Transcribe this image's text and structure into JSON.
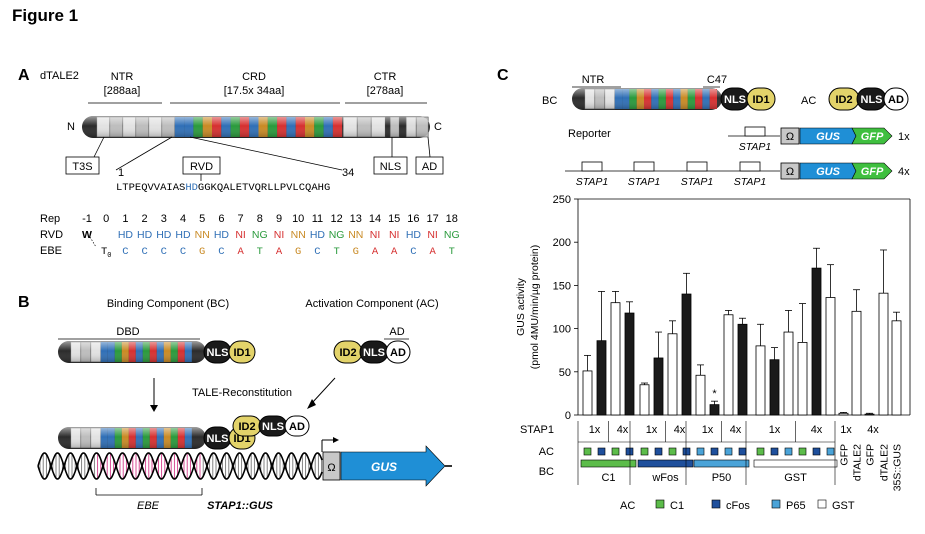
{
  "figure_title": "Figure 1",
  "colors": {
    "HD": "#2f6fb6",
    "NN": "#c98a24",
    "NI": "#d63030",
    "NG": "#2a9a3c",
    "nls_fill": "#1a1a1a",
    "id_fill": "#e3d36a",
    "gus_fill": "#1f8fd6",
    "gfp_fill": "#3fbf3f",
    "ac_c1": "#5cbc4a",
    "ac_cfos": "#1e4f9c",
    "ac_p65": "#4aa3d8",
    "ac_gst": "#ffffff"
  },
  "panel_a": {
    "label": "A",
    "construct": "dTALE2",
    "ntr_label": "NTR",
    "ntr_size": "[288aa]",
    "crd_label": "CRD",
    "crd_size": "[17.5x 34aa]",
    "ctr_label": "CTR",
    "ctr_size": "[278aa]",
    "n_term": "N",
    "c_term": "C",
    "t3s": "T3S",
    "rvd": "RVD",
    "nls": "NLS",
    "ad": "AD",
    "repeat_start": "1",
    "repeat_end": "34",
    "seq_pre": "LTPEQVVAIAS",
    "seq_rvd": "HD",
    "seq_post": "GGKQALETVQRLLPVLCQAHG",
    "rep_label": "Rep",
    "rvd_label": "RVD",
    "ebe_label": "EBE",
    "rep_numbers": [
      "-1",
      "0",
      "1",
      "2",
      "3",
      "4",
      "5",
      "6",
      "7",
      "8",
      "9",
      "10",
      "11",
      "12",
      "13",
      "14",
      "15",
      "16",
      "17",
      "18"
    ],
    "rvds": [
      "W",
      "",
      "HD",
      "HD",
      "HD",
      "HD",
      "NN",
      "HD",
      "NI",
      "NG",
      "NI",
      "NN",
      "HD",
      "NG",
      "NN",
      "NI",
      "NI",
      "HD",
      "NI",
      "NG"
    ],
    "ebe": [
      "",
      "T0",
      "C",
      "C",
      "C",
      "C",
      "G",
      "C",
      "A",
      "T",
      "A",
      "G",
      "C",
      "T",
      "G",
      "A",
      "A",
      "C",
      "A",
      "T"
    ]
  },
  "panel_b": {
    "label": "B",
    "bc_title": "Binding Component (BC)",
    "ac_title": "Activation Component (AC)",
    "dbd": "DBD",
    "ad": "AD",
    "nls": "NLS",
    "id1": "ID1",
    "id2": "ID2",
    "reconstitution": "TALE-Reconstitution",
    "omega": "Ω",
    "gus": "GUS",
    "ebe": "EBE",
    "promoter": "STAP1::GUS"
  },
  "panel_c": {
    "label": "C",
    "bc": "BC",
    "ac": "AC",
    "ntr": "NTR",
    "c47": "C47",
    "nls": "NLS",
    "id1": "ID1",
    "id2": "ID2",
    "ad": "AD",
    "reporter": "Reporter",
    "stap1": "STAP1",
    "omega": "Ω",
    "gus": "GUS",
    "gfp": "GFP",
    "copies_1x": "1x",
    "copies_4x": "4x"
  },
  "chart_data": {
    "type": "bar",
    "ylabel_line1": "GUS activity",
    "ylabel_line2": "(pmol 4MU/min/µg protein)",
    "ylim": [
      0,
      250
    ],
    "yticks": [
      "0",
      "50",
      "100",
      "150",
      "200",
      "250"
    ],
    "stap1_label": "STAP1",
    "ac_row_label": "AC",
    "bc_row_label": "BC",
    "groups": [
      {
        "bc": "C1",
        "bars": [
          {
            "copies": "1x",
            "ac": "C1",
            "value": 51,
            "err": 18
          },
          {
            "copies": "1x",
            "ac": "cFos",
            "value": 86,
            "err": 57
          },
          {
            "copies": "4x",
            "ac": "C1",
            "value": 130,
            "err": 13
          },
          {
            "copies": "4x",
            "ac": "cFos",
            "value": 118,
            "err": 13
          }
        ]
      },
      {
        "bc": "wFos",
        "bars": [
          {
            "copies": "1x",
            "ac": "C1",
            "value": 35,
            "err": 2
          },
          {
            "copies": "1x",
            "ac": "cFos",
            "value": 66,
            "err": 30
          },
          {
            "copies": "4x",
            "ac": "C1",
            "value": 94,
            "err": 15
          },
          {
            "copies": "4x",
            "ac": "cFos",
            "value": 140,
            "err": 24
          }
        ]
      },
      {
        "bc": "P50",
        "bars": [
          {
            "copies": "1x",
            "ac": "P65",
            "value": 46,
            "err": 12
          },
          {
            "copies": "1x",
            "ac": "cFos",
            "value": 12,
            "err": 4,
            "mark": "*"
          },
          {
            "copies": "4x",
            "ac": "P65",
            "value": 116,
            "err": 5
          },
          {
            "copies": "4x",
            "ac": "cFos",
            "value": 105,
            "err": 7
          }
        ]
      },
      {
        "bc": "GST",
        "bars": [
          {
            "copies": "1x",
            "ac": "C1",
            "value": 80,
            "err": 25
          },
          {
            "copies": "1x",
            "ac": "cFos",
            "value": 64,
            "err": 14
          },
          {
            "copies": "1x",
            "ac": "P65",
            "value": 96,
            "err": 25
          },
          {
            "copies": "4x",
            "ac": "C1",
            "value": 84,
            "err": 45
          },
          {
            "copies": "4x",
            "ac": "cFos",
            "value": 170,
            "err": 23
          },
          {
            "copies": "4x",
            "ac": "P65",
            "value": 136,
            "err": 38
          }
        ]
      }
    ],
    "controls": [
      {
        "copies": "1x",
        "label": "GFP",
        "value": 2,
        "err": 1
      },
      {
        "copies": "1x",
        "label": "dTALE2",
        "value": 120,
        "err": 25
      },
      {
        "copies": "4x",
        "label": "GFP",
        "value": 1,
        "err": 1
      },
      {
        "copies": "4x",
        "label": "dTALE2",
        "value": 141,
        "err": 50
      },
      {
        "copies": "",
        "label": "35S::GUS",
        "value": 109,
        "err": 10
      }
    ],
    "legend_title": "AC",
    "legend": [
      {
        "name": "C1",
        "color": "#5cbc4a"
      },
      {
        "name": "cFos",
        "color": "#1e4f9c"
      },
      {
        "name": "P65",
        "color": "#4aa3d8"
      },
      {
        "name": "GST",
        "color": "#ffffff"
      }
    ]
  }
}
